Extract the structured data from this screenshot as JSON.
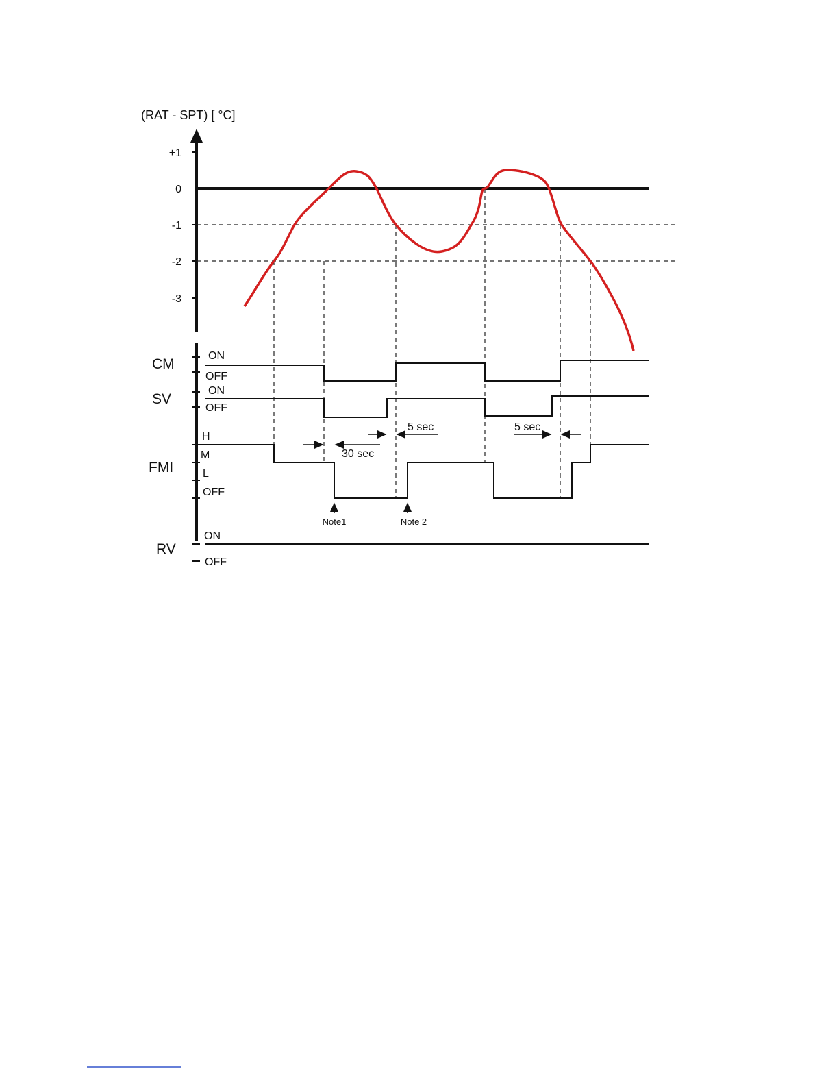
{
  "axis_title": "(RAT - SPT) [ °C]",
  "y_labels": [
    "+1",
    "0",
    "-1",
    "-2",
    "-3"
  ],
  "signals": [
    {
      "name": "CM",
      "states": [
        "ON",
        "OFF"
      ]
    },
    {
      "name": "SV",
      "states": [
        "ON",
        "OFF"
      ]
    },
    {
      "name": "FMI",
      "states": [
        "H",
        "M",
        "L",
        "OFF"
      ]
    },
    {
      "name": "RV",
      "states": [
        "ON",
        "OFF"
      ]
    }
  ],
  "delays": [
    "30 sec",
    "5 sec",
    "5 sec"
  ],
  "notes": [
    "Note1",
    "Note 2"
  ]
}
